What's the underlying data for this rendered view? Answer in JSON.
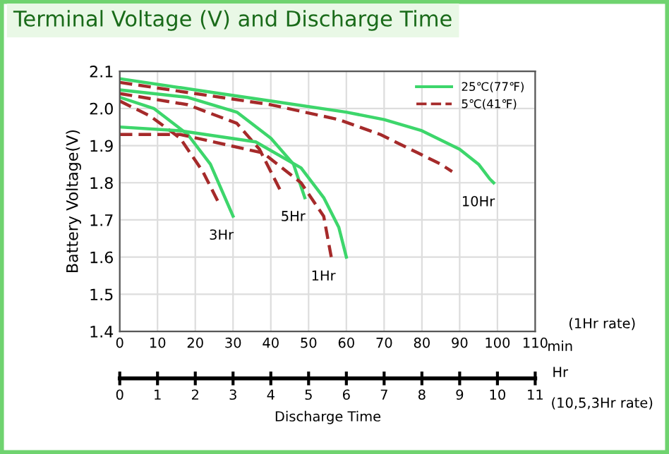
{
  "chart_data": {
    "type": "line",
    "title": "Terminal Voltage (V) and Discharge Time",
    "ylabel": "Battery Voltage(V)",
    "xlabel": "min",
    "x2label": "Hr",
    "xlim": [
      0,
      110
    ],
    "xticks": [
      0,
      10,
      20,
      30,
      40,
      50,
      60,
      70,
      80,
      90,
      100,
      110
    ],
    "x2lim": [
      0,
      11
    ],
    "x2ticks": [
      0,
      1,
      2,
      3,
      4,
      5,
      6,
      7,
      8,
      9,
      10,
      11
    ],
    "ylim": [
      1.4,
      2.1
    ],
    "yticks": [
      1.4,
      1.5,
      1.6,
      1.7,
      1.8,
      1.9,
      {
        "value": 2,
        "label": "2.0"
      },
      2.1
    ],
    "grid": true,
    "legend": "top right",
    "marker": "none",
    "series": [
      {
        "name": "25℃(77℉)",
        "color": "#3dd66b",
        "line_style": "solid",
        "x": [
          0,
          20,
          40,
          60,
          70,
          80,
          90,
          95,
          98,
          99
        ],
        "values": [
          2.08,
          2.05,
          2.02,
          1.99,
          1.97,
          1.94,
          1.89,
          1.85,
          1.81,
          1.8
        ]
      },
      {
        "name": "5℃(41℉)",
        "color": "#a52a2a",
        "line_style": "dashed",
        "x": [
          0,
          20,
          40,
          58,
          69,
          79,
          85,
          88
        ],
        "values": [
          2.07,
          2.04,
          2.01,
          1.97,
          1.93,
          1.88,
          1.85,
          1.83
        ]
      },
      {
        "color": "#3dd66b",
        "line_style": "solid",
        "x": [
          0,
          18,
          31,
          40,
          46,
          49
        ],
        "values": [
          2.05,
          2.03,
          1.99,
          1.92,
          1.85,
          1.76
        ]
      },
      {
        "color": "#a52a2a",
        "line_style": "dashed",
        "x": [
          0,
          18,
          31,
          37,
          40,
          43
        ],
        "values": [
          2.04,
          2.01,
          1.96,
          1.89,
          1.83,
          1.77
        ]
      },
      {
        "color": "#3dd66b",
        "line_style": "solid",
        "x": [
          0,
          9,
          18,
          24,
          30
        ],
        "values": [
          2.03,
          2.0,
          1.93,
          1.85,
          1.71
        ]
      },
      {
        "color": "#a52a2a",
        "line_style": "dashed",
        "x": [
          0,
          8,
          16,
          22,
          26
        ],
        "values": [
          2.02,
          1.98,
          1.92,
          1.83,
          1.75
        ]
      },
      {
        "color": "#3dd66b",
        "line_style": "solid",
        "x": [
          0,
          16,
          36,
          48,
          54,
          58,
          60
        ],
        "values": [
          1.95,
          1.94,
          1.91,
          1.84,
          1.76,
          1.68,
          1.6
        ]
      },
      {
        "color": "#a52a2a",
        "line_style": "dashed",
        "x": [
          0,
          16,
          38,
          48,
          54,
          56
        ],
        "values": [
          1.93,
          1.93,
          1.88,
          1.8,
          1.71,
          1.6
        ]
      }
    ],
    "annotations": [
      {
        "text": "10Hr",
        "x": 98,
        "y": 1.8
      },
      {
        "text": "5Hr",
        "x": 49,
        "y": 1.76
      },
      {
        "text": "3Hr",
        "x": 30,
        "y": 1.71
      },
      {
        "text": "1Hr",
        "x": 57,
        "y": 1.6
      },
      "(1Hr rate)",
      "(10,5,3Hr rate)",
      "Discharge Time"
    ]
  }
}
